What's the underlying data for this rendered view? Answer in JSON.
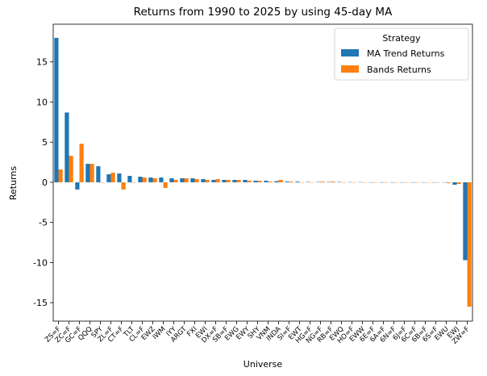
{
  "chart_data": {
    "type": "bar",
    "title": "Returns from 1990 to 2025 by using 45-day MA",
    "xlabel": "Universe",
    "ylabel": "Returns",
    "ylim": [
      -17.3,
      19.7
    ],
    "yticks": [
      -15,
      -10,
      -5,
      0,
      5,
      10,
      15
    ],
    "legend": {
      "title": "Strategy",
      "placement": "upper-right"
    },
    "categories": [
      "ZS=F",
      "ZC=F",
      "GC=F",
      "QQQ",
      "SPY",
      "ZL=F",
      "CT=F",
      "TLT",
      "CL=F",
      "EWZ",
      "IWM",
      "IYY",
      "ARGT",
      "FXI",
      "EWI",
      "DX=F",
      "SB=F",
      "EWG",
      "EWY",
      "SHY",
      "VNM",
      "INDA",
      "SI=F",
      "EWT",
      "HG=F",
      "NG=F",
      "RB=F",
      "EWQ",
      "HO=F",
      "EWW",
      "6E=F",
      "6A=F",
      "6N=F",
      "6J=F",
      "6C=F",
      "6B=F",
      "6S=F",
      "EWU",
      "EWJ",
      "ZW=F"
    ],
    "series": [
      {
        "name": "MA Trend Returns",
        "color": "#1f77b4",
        "values": [
          18.0,
          8.7,
          -0.9,
          2.3,
          2.0,
          1.0,
          1.1,
          0.8,
          0.7,
          0.6,
          0.6,
          0.5,
          0.5,
          0.5,
          0.4,
          0.3,
          0.3,
          0.3,
          0.3,
          0.2,
          0.2,
          0.15,
          0.1,
          0.1,
          0.05,
          0.05,
          0.05,
          0.05,
          0.02,
          0.02,
          0.01,
          0.01,
          0.01,
          0.01,
          0.01,
          0.01,
          0.01,
          0.01,
          -0.3,
          -9.7
        ]
      },
      {
        "name": "Bands Returns",
        "color": "#ff7f0e",
        "values": [
          1.6,
          3.3,
          4.8,
          2.3,
          0.0,
          1.2,
          -0.9,
          0.0,
          0.6,
          0.5,
          -0.7,
          0.3,
          0.5,
          0.4,
          0.3,
          0.4,
          0.3,
          0.3,
          0.2,
          0.2,
          0.1,
          0.3,
          0.1,
          0.0,
          0.0,
          0.1,
          0.1,
          0.0,
          0.0,
          0.0,
          0.0,
          0.0,
          0.0,
          0.0,
          0.0,
          0.0,
          0.0,
          -0.1,
          -0.2,
          -15.5
        ]
      }
    ]
  }
}
